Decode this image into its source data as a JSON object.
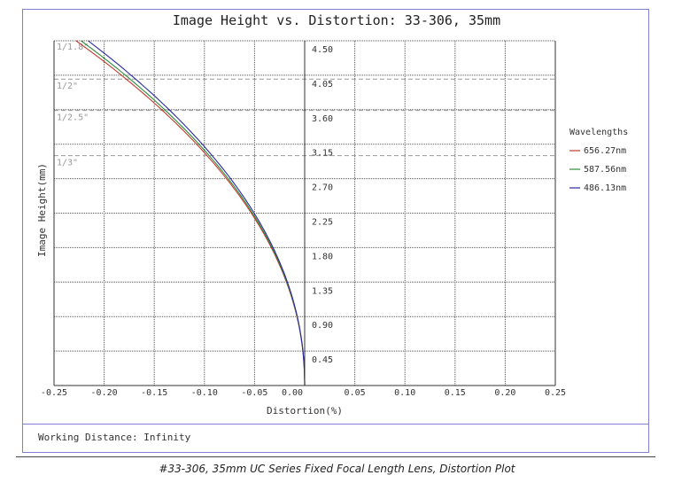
{
  "chart_data": {
    "type": "line",
    "title": "Image Height vs. Distortion: 33-306, 35mm",
    "xlabel": "Distortion(%)",
    "ylabel": "Image Height(mm)",
    "xlim": [
      -0.25,
      0.25
    ],
    "ylim": [
      0,
      4.5
    ],
    "x_ticks": [
      "-0.25",
      "-0.20",
      "-0.15",
      "-0.10",
      "-0.05",
      "0.00",
      "0.05",
      "0.10",
      "0.15",
      "0.20",
      "0.25"
    ],
    "y_ticks": [
      "0.45",
      "0.90",
      "1.35",
      "1.80",
      "2.25",
      "2.70",
      "3.15",
      "3.60",
      "4.05",
      "4.50"
    ],
    "grid": true,
    "legend_title": "Wavelengths",
    "legend_position": "right",
    "sensor_markers": [
      {
        "label": "1/1.8\"",
        "height": 4.46
      },
      {
        "label": "1/2\"",
        "height": 4.0
      },
      {
        "label": "1/2.5\"",
        "height": 3.59
      },
      {
        "label": "1/3\"",
        "height": 3.0
      }
    ],
    "image_height": [
      0,
      0.45,
      0.9,
      1.35,
      1.8,
      2.25,
      2.7,
      3.15,
      3.6,
      4.05,
      4.5
    ],
    "series": [
      {
        "name": "656.27nm",
        "color": "#c0392b",
        "distortion": [
          0,
          -0.002,
          -0.008,
          -0.021,
          -0.035,
          -0.052,
          -0.075,
          -0.108,
          -0.143,
          -0.183,
          -0.228
        ]
      },
      {
        "name": "587.56nm",
        "color": "#2e8b3a",
        "distortion": [
          0,
          -0.002,
          -0.008,
          -0.02,
          -0.034,
          -0.051,
          -0.073,
          -0.105,
          -0.139,
          -0.178,
          -0.223
        ]
      },
      {
        "name": "486.13nm",
        "color": "#2a2aa0",
        "distortion": [
          0,
          -0.002,
          -0.007,
          -0.019,
          -0.033,
          -0.049,
          -0.071,
          -0.101,
          -0.135,
          -0.172,
          -0.216
        ]
      }
    ]
  },
  "footer": {
    "working_distance": "Working Distance: Infinity"
  },
  "caption": "#33-306, 35mm UC Series Fixed Focal Length Lens, Distortion Plot"
}
